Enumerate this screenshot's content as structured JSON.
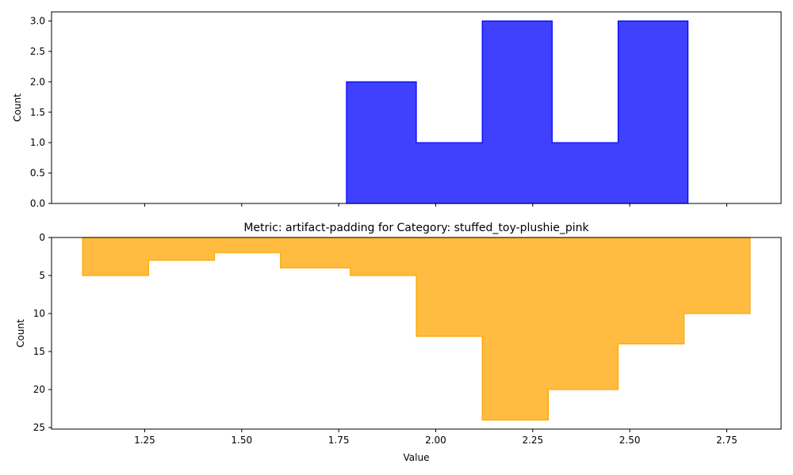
{
  "chart_data": [
    {
      "type": "histogram",
      "panel": "top",
      "title": "",
      "xlabel": "",
      "ylabel": "Count",
      "color": "#0000ff",
      "fill_alpha": 0.75,
      "edge_color": "#0000ff",
      "bins": [
        {
          "x0": 1.77,
          "x1": 1.95,
          "count": 2
        },
        {
          "x0": 1.95,
          "x1": 2.12,
          "count": 1
        },
        {
          "x0": 2.12,
          "x1": 2.3,
          "count": 3
        },
        {
          "x0": 2.3,
          "x1": 2.47,
          "count": 1
        },
        {
          "x0": 2.47,
          "x1": 2.65,
          "count": 3
        }
      ],
      "xlim": [
        1.01,
        2.89
      ],
      "ylim": [
        0,
        3.15
      ],
      "y_ticks": [
        "0.0",
        "0.5",
        "1.0",
        "1.5",
        "2.0",
        "2.5",
        "3.0"
      ],
      "y_tick_values": [
        0,
        0.5,
        1.0,
        1.5,
        2.0,
        2.5,
        3.0
      ],
      "x_tick_values": [
        1.25,
        1.5,
        1.75,
        2.0,
        2.25,
        2.5,
        2.75
      ],
      "x_tick_labels_shown": false
    },
    {
      "type": "histogram",
      "panel": "bottom",
      "title": "Metric: artifact-padding for Category: stuffed_toy-plushie_pink",
      "xlabel": "Value",
      "ylabel": "Count",
      "y_inverted": true,
      "color": "#ffa500",
      "fill_alpha": 0.75,
      "edge_color": "#ffa500",
      "bins": [
        {
          "x0": 1.09,
          "x1": 1.26,
          "count": 5
        },
        {
          "x0": 1.26,
          "x1": 1.43,
          "count": 3
        },
        {
          "x0": 1.43,
          "x1": 1.6,
          "count": 2
        },
        {
          "x0": 1.6,
          "x1": 1.78,
          "count": 4
        },
        {
          "x0": 1.78,
          "x1": 1.95,
          "count": 5
        },
        {
          "x0": 1.95,
          "x1": 2.12,
          "count": 13
        },
        {
          "x0": 2.12,
          "x1": 2.29,
          "count": 24
        },
        {
          "x0": 2.29,
          "x1": 2.47,
          "count": 20
        },
        {
          "x0": 2.47,
          "x1": 2.64,
          "count": 14
        },
        {
          "x0": 2.64,
          "x1": 2.81,
          "count": 10
        }
      ],
      "xlim": [
        1.01,
        2.89
      ],
      "ylim": [
        0,
        25.2
      ],
      "y_ticks": [
        "0",
        "5",
        "10",
        "15",
        "20",
        "25"
      ],
      "y_tick_values": [
        0,
        5,
        10,
        15,
        20,
        25
      ],
      "x_ticks": [
        "1.25",
        "1.50",
        "1.75",
        "2.00",
        "2.25",
        "2.50",
        "2.75"
      ],
      "x_tick_values": [
        1.25,
        1.5,
        1.75,
        2.0,
        2.25,
        2.5,
        2.75
      ]
    }
  ]
}
